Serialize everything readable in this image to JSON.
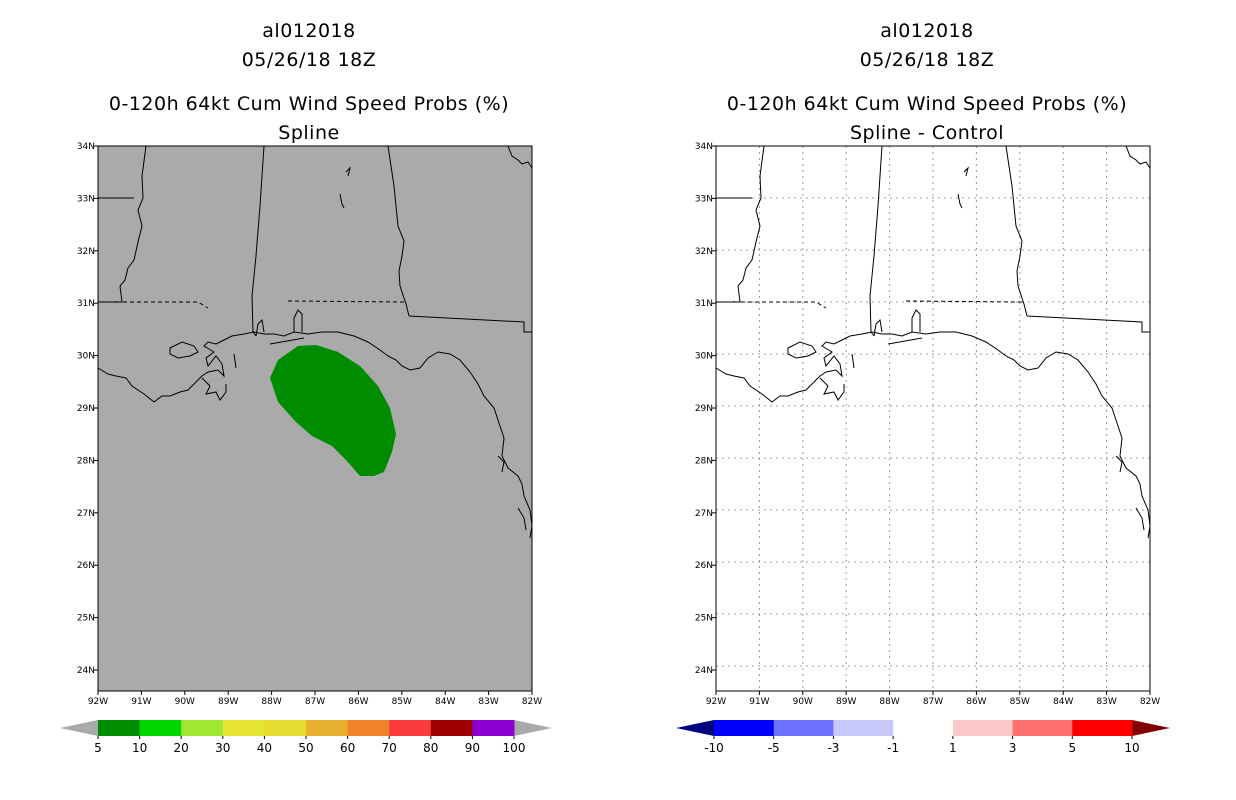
{
  "panels": [
    {
      "title1": "al012018",
      "title2": "05/26/18 18Z",
      "title3": "0-120h 64kt Cum Wind Speed Probs (%)",
      "subtitle": "Spline"
    },
    {
      "title1": "al012018",
      "title2": "05/26/18 18Z",
      "title3": "0-120h 64kt Cum Wind Speed Probs (%)",
      "subtitle": "Spline - Control"
    }
  ],
  "map": {
    "lon_labels": [
      "92W",
      "91W",
      "90W",
      "89W",
      "88W",
      "87W",
      "86W",
      "85W",
      "84W",
      "83W",
      "82W"
    ],
    "lat_labels": [
      "34N",
      "33N",
      "32N",
      "31N",
      "30N",
      "29N",
      "28N",
      "27N",
      "26N",
      "25N",
      "24N"
    ],
    "lon_range": [
      -92,
      -82
    ],
    "lat_range": [
      23.6,
      34
    ]
  },
  "colorbars": [
    {
      "labels": [
        "5",
        "10",
        "20",
        "30",
        "40",
        "50",
        "60",
        "70",
        "80",
        "90",
        "100"
      ],
      "colors": [
        "#008c00",
        "#00d600",
        "#a0e632",
        "#e6e632",
        "#e6dc32",
        "#e6af2d",
        "#f08228",
        "#fa3c3c",
        "#a00000",
        "#8c00d2"
      ],
      "under_color": "#aaaaaa",
      "over_color": "#aaaaaa"
    },
    {
      "labels": [
        "-10",
        "-5",
        "-3",
        "-1",
        "1",
        "3",
        "5",
        "10"
      ],
      "colors": [
        "#0000ff",
        "#7070ff",
        "#c8c8ff",
        "#ffffff",
        "#ffc8c8",
        "#ff7070",
        "#ff0000"
      ],
      "under_color": "#000080",
      "over_color": "#800000"
    }
  ],
  "colors": {
    "ocean_left": "#aaaaaa",
    "ocean_right": "#ffffff",
    "prob_fill": "#008c00"
  }
}
